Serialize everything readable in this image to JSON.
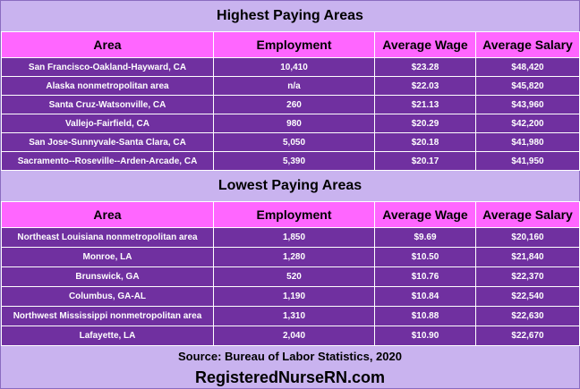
{
  "highest": {
    "title": "Highest Paying Areas",
    "headers": [
      "Area",
      "Employment",
      "Average Wage",
      "Average Salary"
    ],
    "rows": [
      [
        "San Francisco-Oakland-Hayward, CA",
        "10,410",
        "$23.28",
        "$48,420"
      ],
      [
        "Alaska nonmetropolitan area",
        "n/a",
        "$22.03",
        "$45,820"
      ],
      [
        "Santa Cruz-Watsonville, CA",
        "260",
        "$21.13",
        "$43,960"
      ],
      [
        "Vallejo-Fairfield, CA",
        "980",
        "$20.29",
        "$42,200"
      ],
      [
        "San Jose-Sunnyvale-Santa Clara, CA",
        "5,050",
        "$20.18",
        "$41,980"
      ],
      [
        "Sacramento--Roseville--Arden-Arcade, CA",
        "5,390",
        "$20.17",
        "$41,950"
      ]
    ]
  },
  "lowest": {
    "title": "Lowest Paying Areas",
    "headers": [
      "Area",
      "Employment",
      "Average Wage",
      "Average Salary"
    ],
    "rows": [
      [
        "Northeast Louisiana nonmetropolitan area",
        "1,850",
        "$9.69",
        "$20,160"
      ],
      [
        "Monroe, LA",
        "1,280",
        "$10.50",
        "$21,840"
      ],
      [
        "Brunswick, GA",
        "520",
        "$10.76",
        "$22,370"
      ],
      [
        "Columbus, GA-AL",
        "1,190",
        "$10.84",
        "$22,540"
      ],
      [
        "Northwest Mississippi nonmetropolitan area",
        "1,310",
        "$10.88",
        "$22,630"
      ],
      [
        "Lafayette, LA",
        "2,040",
        "$10.90",
        "$22,670"
      ]
    ]
  },
  "footer": {
    "source": "Source: Bureau of Labor Statistics, 2020",
    "site": "RegisteredNurseRN.com"
  }
}
